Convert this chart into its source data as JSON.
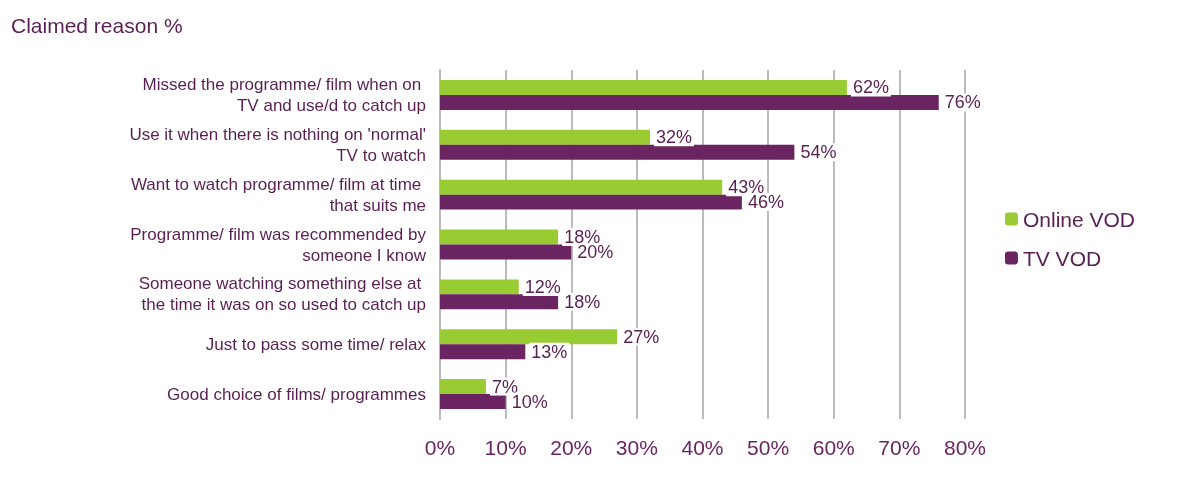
{
  "chart_data": {
    "type": "bar",
    "orientation": "horizontal",
    "title": "Claimed reason %",
    "categories": [
      "Missed the programme/ film when on TV and use/d to catch up",
      "Use it when there is nothing on 'normal' TV to watch",
      "Want to watch programme/ film at time that suits me",
      "Programme/ film was recommended by someone I know",
      "Someone watching something else at the time it was on so used to catch up",
      "Just to pass some time/ relax",
      "Good choice of films/ programmes"
    ],
    "series": [
      {
        "name": "Online VOD",
        "color": "#99cc33",
        "values": [
          62,
          32,
          43,
          18,
          12,
          27,
          7
        ],
        "value_labels": [
          "62%",
          "32%",
          "43%",
          "18%",
          "12%",
          "27%",
          "7%"
        ]
      },
      {
        "name": "TV VOD",
        "color": "#6b2462",
        "values": [
          76,
          54,
          46,
          20,
          18,
          13,
          10
        ],
        "value_labels": [
          "76%",
          "54%",
          "46%",
          "20%",
          "18%",
          "13%",
          "10%"
        ]
      }
    ],
    "xlim": [
      0,
      80
    ],
    "xticks": [
      {
        "value": 0,
        "label": "0%"
      },
      {
        "value": 10,
        "label": "10%"
      },
      {
        "value": 20,
        "label": "20%"
      },
      {
        "value": 30,
        "label": "30%"
      },
      {
        "value": 40,
        "label": "40%"
      },
      {
        "value": 50,
        "label": "50%"
      },
      {
        "value": 60,
        "label": "60%"
      },
      {
        "value": 70,
        "label": "70%"
      },
      {
        "value": 80,
        "label": "80%"
      }
    ],
    "grid": "x",
    "legend": "right"
  }
}
